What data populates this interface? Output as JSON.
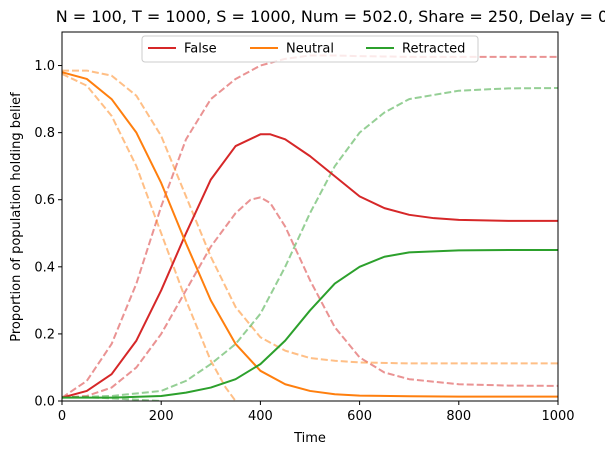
{
  "chart_data": {
    "type": "line",
    "title": "N = 100, T = 1000, S = 1000, Num = 502.0, Share = 250, Delay = 0",
    "xlabel": "Time",
    "ylabel": "Proportion of population holding belief",
    "xlim": [
      0,
      1000
    ],
    "ylim": [
      0,
      1.1
    ],
    "x_ticks": [
      0,
      200,
      400,
      600,
      800,
      1000
    ],
    "y_ticks": [
      0.0,
      0.2,
      0.4,
      0.6,
      0.8,
      1.0
    ],
    "x_tick_labels": [
      "0",
      "200",
      "400",
      "600",
      "800",
      "1000"
    ],
    "y_tick_labels": [
      "0.0",
      "0.2",
      "0.4",
      "0.6",
      "0.8",
      "1.0"
    ],
    "grid": false,
    "legend": {
      "placement": "top-center",
      "entries": [
        "False",
        "Neutral",
        "Retracted"
      ]
    },
    "series": [
      {
        "name": "False",
        "color": "#d62728",
        "style": "solid",
        "x": [
          0,
          50,
          100,
          150,
          200,
          250,
          300,
          350,
          400,
          420,
          450,
          500,
          550,
          600,
          650,
          700,
          750,
          800,
          900,
          1000
        ],
        "values": [
          0.01,
          0.03,
          0.08,
          0.18,
          0.33,
          0.5,
          0.66,
          0.76,
          0.795,
          0.795,
          0.78,
          0.73,
          0.67,
          0.61,
          0.575,
          0.555,
          0.545,
          0.54,
          0.537,
          0.537
        ]
      },
      {
        "name": "Neutral",
        "color": "#ff7f0e",
        "style": "solid",
        "x": [
          0,
          50,
          100,
          150,
          200,
          250,
          300,
          350,
          400,
          450,
          500,
          550,
          600,
          700,
          800,
          900,
          1000
        ],
        "values": [
          0.98,
          0.96,
          0.9,
          0.8,
          0.65,
          0.47,
          0.3,
          0.17,
          0.09,
          0.05,
          0.03,
          0.02,
          0.016,
          0.014,
          0.013,
          0.013,
          0.013
        ]
      },
      {
        "name": "Retracted",
        "color": "#2ca02c",
        "style": "solid",
        "x": [
          0,
          100,
          200,
          250,
          300,
          350,
          400,
          450,
          500,
          550,
          600,
          650,
          700,
          800,
          900,
          1000
        ],
        "values": [
          0.01,
          0.01,
          0.015,
          0.025,
          0.04,
          0.065,
          0.11,
          0.18,
          0.27,
          0.35,
          0.4,
          0.43,
          0.443,
          0.449,
          0.45,
          0.45
        ]
      },
      {
        "color": "#d62728",
        "style": "dashed",
        "x": [
          0,
          50,
          100,
          150,
          200,
          250,
          300,
          350,
          400,
          450,
          500,
          550,
          600,
          700,
          800,
          900,
          1000
        ],
        "values": [
          0.01,
          0.06,
          0.17,
          0.35,
          0.58,
          0.78,
          0.9,
          0.96,
          1.0,
          1.02,
          1.03,
          1.03,
          1.028,
          1.026,
          1.026,
          1.026,
          1.026
        ]
      },
      {
        "color": "#d62728",
        "style": "dashed",
        "x": [
          0,
          50,
          100,
          150,
          200,
          250,
          300,
          350,
          380,
          400,
          420,
          450,
          500,
          550,
          600,
          650,
          700,
          800,
          900,
          1000
        ],
        "values": [
          0.01,
          0.015,
          0.04,
          0.1,
          0.2,
          0.33,
          0.46,
          0.56,
          0.6,
          0.607,
          0.59,
          0.52,
          0.36,
          0.22,
          0.13,
          0.085,
          0.065,
          0.05,
          0.046,
          0.045
        ]
      },
      {
        "color": "#ff7f0e",
        "style": "dashed",
        "x": [
          0,
          50,
          100,
          150,
          200,
          250,
          300,
          350,
          400,
          450,
          500,
          550,
          600,
          700,
          800,
          900,
          1000
        ],
        "values": [
          0.985,
          0.985,
          0.97,
          0.91,
          0.79,
          0.61,
          0.43,
          0.28,
          0.19,
          0.15,
          0.128,
          0.12,
          0.115,
          0.112,
          0.112,
          0.112,
          0.112
        ]
      },
      {
        "color": "#ff7f0e",
        "style": "dashed",
        "x": [
          0,
          50,
          100,
          150,
          200,
          250,
          300,
          330,
          350
        ],
        "values": [
          0.975,
          0.94,
          0.85,
          0.7,
          0.5,
          0.3,
          0.12,
          0.04,
          0.0
        ]
      },
      {
        "color": "#2ca02c",
        "style": "dashed",
        "x": [
          0,
          100,
          200,
          250,
          300,
          350,
          400,
          450,
          500,
          550,
          600,
          650,
          700,
          800,
          900,
          1000
        ],
        "values": [
          0.01,
          0.015,
          0.03,
          0.06,
          0.11,
          0.17,
          0.26,
          0.4,
          0.56,
          0.7,
          0.8,
          0.86,
          0.9,
          0.925,
          0.932,
          0.933
        ]
      },
      {
        "color": "#2ca02c",
        "style": "dashed",
        "x": [
          0,
          50,
          100,
          150,
          200
        ],
        "values": [
          0.012,
          0.011,
          0.008,
          0.004,
          0.0
        ]
      }
    ]
  }
}
